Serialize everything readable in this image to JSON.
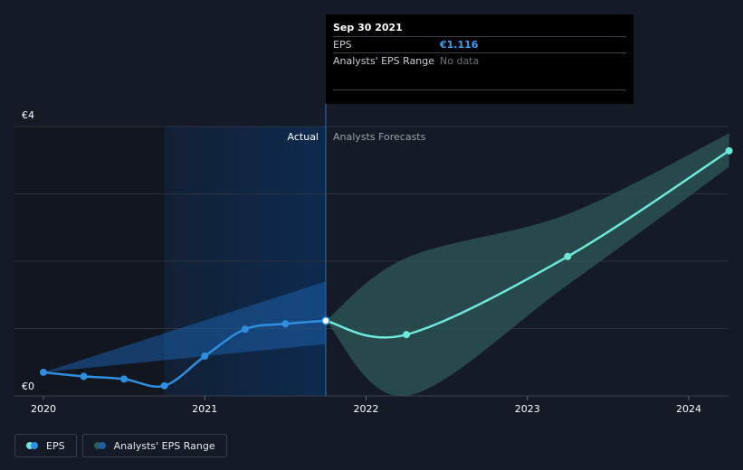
{
  "colors": {
    "background": "#151b26",
    "eps_line": "#2e8fe0",
    "eps_fill_band": "#1c5fa8",
    "forecast_line": "#6ee8d8",
    "forecast_band": "#2d5a5a",
    "actual_region": "#0d2a4f",
    "grid": "#2c333e"
  },
  "tooltip": {
    "date": "Sep 30 2021",
    "eps_label": "EPS",
    "eps_value": "€1.116",
    "range_label": "Analysts' EPS Range",
    "range_value": "No data"
  },
  "legend": {
    "eps_label": "EPS",
    "range_label": "Analysts' EPS Range"
  },
  "chart_data": {
    "type": "line",
    "y_tick_labels": [
      "€4",
      "€0"
    ],
    "ylim": [
      0,
      4
    ],
    "xlim": [
      2020.0,
      2024.25
    ],
    "x_tick_labels": [
      "2020",
      "2021",
      "2022",
      "2023",
      "2024"
    ],
    "x_ticks": [
      2020,
      2021,
      2022,
      2023,
      2024
    ],
    "region_labels": {
      "actual": "Actual",
      "forecast": "Analysts Forecasts"
    },
    "actual_region_start": 2020.75,
    "divider_x": 2021.75,
    "grid": true,
    "legend_position": "bottom-left",
    "series": [
      {
        "name": "EPS",
        "kind": "actual",
        "x": [
          2020.0,
          2020.25,
          2020.5,
          2020.75,
          2021.0,
          2021.25,
          2021.5,
          2021.75
        ],
        "y": [
          0.35,
          0.29,
          0.25,
          0.15,
          0.59,
          0.99,
          1.07,
          1.116
        ]
      },
      {
        "name": "EPS forecast",
        "kind": "forecast",
        "x": [
          2021.75,
          2022.25,
          2023.25,
          2024.25
        ],
        "y": [
          1.116,
          0.91,
          2.07,
          3.64
        ]
      }
    ],
    "actual_band": {
      "x": [
        2020.0,
        2021.75
      ],
      "low": [
        0.35,
        0.77
      ],
      "high": [
        0.35,
        1.7
      ]
    },
    "forecast_band": {
      "x": [
        2021.75,
        2022.25,
        2023.25,
        2024.25
      ],
      "low": [
        1.116,
        0.0,
        1.65,
        3.4
      ],
      "high": [
        1.116,
        2.05,
        2.7,
        3.9
      ]
    }
  }
}
